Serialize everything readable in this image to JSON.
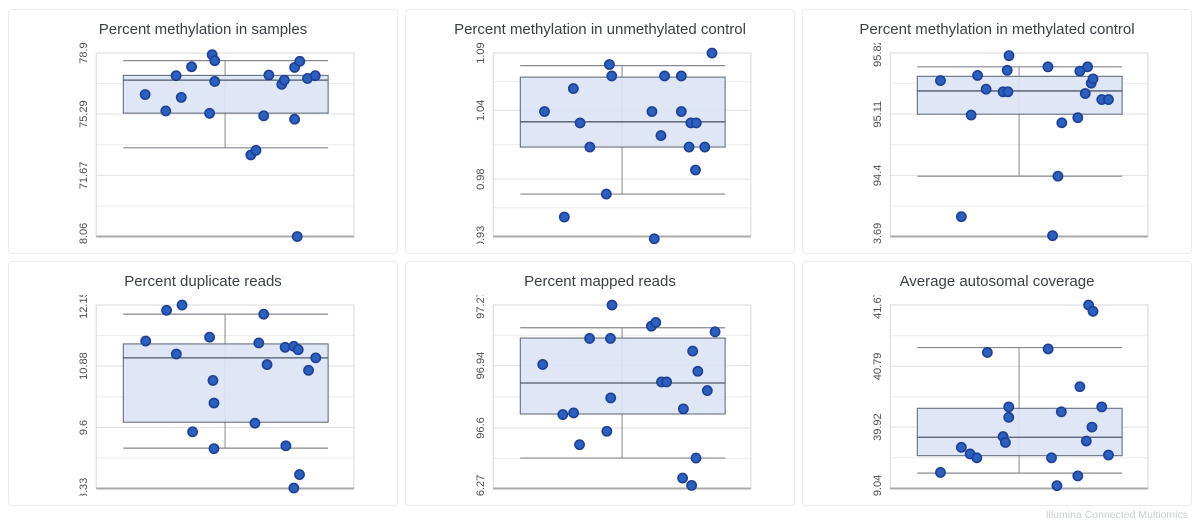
{
  "app": {
    "footer_brand": "Illumina Connected Multiomics"
  },
  "colors": {
    "point_fill": "#2b5fc0",
    "point_stroke": "#1e4096",
    "box_fill": "#dce4f6",
    "box_stroke": "#5a6474",
    "median_line": "#4e586a",
    "whisker_line": "#85898f",
    "grid_major": "#e2e2e2",
    "grid_minor": "#ececec",
    "plot_border": "#d9d9d9",
    "axis_bottom": "#aaaaaa",
    "title_text": "#3b3f46",
    "tick_text": "#4d5057",
    "footer_text": "#c9cdd5"
  },
  "chart_data": [
    {
      "type": "box",
      "title": "Percent methylation in samples",
      "ylim": [
        68.06,
        78.9
      ],
      "yticks": [
        78.9,
        75.29,
        71.67,
        68.06
      ],
      "ytick_labels": [
        "78.9",
        "75.29",
        "71.67",
        "68.06"
      ],
      "grid": "horizontal major + minor midpoints",
      "legend": "none",
      "box": {
        "q1": 75.35,
        "median": 77.3,
        "q3": 77.58,
        "whisker_low": 73.3,
        "whisker_high": 78.45
      },
      "points": [
        [
          0.19,
          76.45
        ],
        [
          0.27,
          75.48
        ],
        [
          0.31,
          77.56
        ],
        [
          0.33,
          76.28
        ],
        [
          0.37,
          78.09
        ],
        [
          0.45,
          78.8
        ],
        [
          0.46,
          78.45
        ],
        [
          0.46,
          77.22
        ],
        [
          0.44,
          75.34
        ],
        [
          0.6,
          72.88
        ],
        [
          0.62,
          73.15
        ],
        [
          0.65,
          75.19
        ],
        [
          0.67,
          77.6
        ],
        [
          0.72,
          77.05
        ],
        [
          0.73,
          77.3
        ],
        [
          0.77,
          74.99
        ],
        [
          0.77,
          78.05
        ],
        [
          0.79,
          78.41
        ],
        [
          0.82,
          77.4
        ],
        [
          0.85,
          77.56
        ],
        [
          0.78,
          68.06
        ]
      ]
    },
    {
      "type": "box",
      "title": "Percent methylation in unmethylated control",
      "ylim": [
        0.93,
        1.09
      ],
      "yticks": [
        1.09,
        1.04,
        0.98,
        0.93
      ],
      "ytick_labels": [
        "1.09",
        "1.04",
        "0.98",
        "0.93"
      ],
      "grid": "horizontal major + minor midpoints",
      "legend": "none",
      "box": {
        "q1": 1.008,
        "median": 1.03,
        "q3": 1.069,
        "whisker_low": 0.967,
        "whisker_high": 1.079
      },
      "points": [
        [
          0.451,
          1.08
        ],
        [
          0.46,
          1.07
        ],
        [
          0.311,
          1.059
        ],
        [
          0.199,
          1.039
        ],
        [
          0.337,
          1.029
        ],
        [
          0.665,
          1.07
        ],
        [
          0.73,
          1.07
        ],
        [
          0.616,
          1.039
        ],
        [
          0.73,
          1.039
        ],
        [
          0.767,
          1.029
        ],
        [
          0.788,
          1.029
        ],
        [
          0.651,
          1.018
        ],
        [
          0.375,
          1.008
        ],
        [
          0.76,
          1.008
        ],
        [
          0.821,
          1.008
        ],
        [
          0.785,
          0.988
        ],
        [
          0.439,
          0.967
        ],
        [
          0.276,
          0.947
        ],
        [
          0.625,
          0.928
        ],
        [
          0.849,
          1.09
        ]
      ]
    },
    {
      "type": "box",
      "title": "Percent methylation in methylated control",
      "ylim": [
        93.69,
        95.82
      ],
      "yticks": [
        95.82,
        95.11,
        94.4,
        93.69
      ],
      "ytick_labels": [
        "95.82",
        "95.11",
        "94.4",
        "93.69"
      ],
      "grid": "horizontal major + minor midpoints",
      "legend": "none",
      "box": {
        "q1": 95.11,
        "median": 95.38,
        "q3": 95.55,
        "whisker_low": 94.39,
        "whisker_high": 95.66
      },
      "points": [
        [
          0.461,
          95.79
        ],
        [
          0.454,
          95.62
        ],
        [
          0.612,
          95.66
        ],
        [
          0.736,
          95.61
        ],
        [
          0.766,
          95.66
        ],
        [
          0.339,
          95.56
        ],
        [
          0.195,
          95.5
        ],
        [
          0.372,
          95.4
        ],
        [
          0.438,
          95.37
        ],
        [
          0.457,
          95.37
        ],
        [
          0.78,
          95.47
        ],
        [
          0.787,
          95.52
        ],
        [
          0.757,
          95.35
        ],
        [
          0.821,
          95.28
        ],
        [
          0.847,
          95.28
        ],
        [
          0.314,
          95.1
        ],
        [
          0.728,
          95.07
        ],
        [
          0.666,
          95.01
        ],
        [
          0.651,
          94.39
        ],
        [
          0.276,
          93.92
        ],
        [
          0.63,
          93.7
        ]
      ]
    },
    {
      "type": "box",
      "title": "Percent duplicate reads",
      "ylim": [
        8.33,
        12.15
      ],
      "yticks": [
        12.15,
        10.88,
        9.6,
        8.33
      ],
      "ytick_labels": [
        "12.15",
        "10.88",
        "9.6",
        "8.33"
      ],
      "grid": "horizontal major + minor midpoints",
      "legend": "none",
      "box": {
        "q1": 9.71,
        "median": 11.05,
        "q3": 11.34,
        "whisker_low": 9.17,
        "whisker_high": 11.96
      },
      "points": [
        [
          0.333,
          12.15
        ],
        [
          0.273,
          12.04
        ],
        [
          0.65,
          11.96
        ],
        [
          0.44,
          11.48
        ],
        [
          0.192,
          11.4
        ],
        [
          0.311,
          11.13
        ],
        [
          0.631,
          11.36
        ],
        [
          0.733,
          11.27
        ],
        [
          0.767,
          11.29
        ],
        [
          0.784,
          11.22
        ],
        [
          0.852,
          11.05
        ],
        [
          0.663,
          10.91
        ],
        [
          0.824,
          10.79
        ],
        [
          0.453,
          10.58
        ],
        [
          0.457,
          10.11
        ],
        [
          0.616,
          9.69
        ],
        [
          0.374,
          9.51
        ],
        [
          0.457,
          9.16
        ],
        [
          0.736,
          9.22
        ],
        [
          0.789,
          8.62
        ],
        [
          0.767,
          8.34
        ]
      ]
    },
    {
      "type": "box",
      "title": "Percent mapped reads",
      "ylim": [
        96.27,
        97.27
      ],
      "yticks": [
        97.27,
        96.94,
        96.6,
        96.27
      ],
      "ytick_labels": [
        "97.27",
        "96.94",
        "96.6",
        "96.27"
      ],
      "grid": "horizontal major + minor midpoints",
      "legend": "none",
      "box": {
        "q1": 96.676,
        "median": 96.845,
        "q3": 97.09,
        "whisker_low": 96.436,
        "whisker_high": 97.146
      },
      "points": [
        [
          0.461,
          97.27
        ],
        [
          0.614,
          97.155
        ],
        [
          0.631,
          97.175
        ],
        [
          0.861,
          97.124
        ],
        [
          0.374,
          97.088
        ],
        [
          0.455,
          97.088
        ],
        [
          0.774,
          97.019
        ],
        [
          0.192,
          96.946
        ],
        [
          0.794,
          96.909
        ],
        [
          0.653,
          96.851
        ],
        [
          0.673,
          96.851
        ],
        [
          0.831,
          96.804
        ],
        [
          0.456,
          96.764
        ],
        [
          0.738,
          96.704
        ],
        [
          0.27,
          96.673
        ],
        [
          0.312,
          96.682
        ],
        [
          0.441,
          96.582
        ],
        [
          0.335,
          96.509
        ],
        [
          0.787,
          96.436
        ],
        [
          0.735,
          96.327
        ],
        [
          0.77,
          96.287
        ]
      ]
    },
    {
      "type": "box",
      "title": "Average autosomal coverage",
      "ylim": [
        39.04,
        41.67
      ],
      "yticks": [
        41.67,
        40.79,
        39.92,
        39.04
      ],
      "ytick_labels": [
        "41.67",
        "40.79",
        "39.92",
        "39.04"
      ],
      "grid": "horizontal major + minor midpoints",
      "legend": "none",
      "box": {
        "q1": 39.51,
        "median": 39.775,
        "q3": 40.19,
        "whisker_low": 39.26,
        "whisker_high": 41.06
      },
      "points": [
        [
          0.77,
          41.67
        ],
        [
          0.787,
          41.58
        ],
        [
          0.613,
          41.04
        ],
        [
          0.377,
          40.99
        ],
        [
          0.736,
          40.5
        ],
        [
          0.46,
          40.21
        ],
        [
          0.821,
          40.21
        ],
        [
          0.664,
          40.14
        ],
        [
          0.46,
          40.06
        ],
        [
          0.783,
          39.92
        ],
        [
          0.438,
          39.785
        ],
        [
          0.447,
          39.7
        ],
        [
          0.761,
          39.72
        ],
        [
          0.276,
          39.63
        ],
        [
          0.31,
          39.535
        ],
        [
          0.336,
          39.48
        ],
        [
          0.626,
          39.48
        ],
        [
          0.847,
          39.52
        ],
        [
          0.195,
          39.27
        ],
        [
          0.728,
          39.22
        ],
        [
          0.647,
          39.08
        ]
      ]
    }
  ]
}
